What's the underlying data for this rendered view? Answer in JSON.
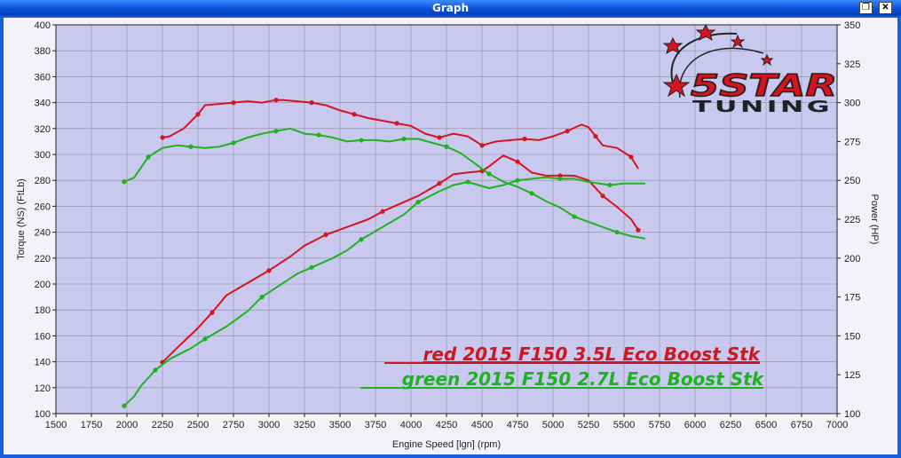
{
  "window": {
    "title": "Graph",
    "restore_icon": "restore-icon",
    "close_icon": "close-icon"
  },
  "logo": {
    "line1": "5STAR",
    "line2": "TUNING"
  },
  "colors": {
    "plot_bg": "#c9c9ef",
    "frame_bg": "#f3f3f7",
    "grid": "#8c8c9c",
    "red": "#d4141e",
    "green": "#1cb31c",
    "blue_chrome": "#1a5fe0"
  },
  "chart_data": {
    "type": "line",
    "xlabel": "Engine Speed [lgn] (rpm)",
    "ylabel": "Torque (NS) (FtLb)",
    "y2label": "Power (HP)",
    "xlim": [
      1500,
      7000
    ],
    "ylim": [
      100,
      400
    ],
    "y2lim": [
      100,
      350
    ],
    "xticks": [
      1500,
      1750,
      2000,
      2250,
      2500,
      2750,
      3000,
      3250,
      3500,
      3750,
      4000,
      4250,
      4500,
      4750,
      5000,
      5250,
      5500,
      5750,
      6000,
      6250,
      6500,
      6750,
      7000
    ],
    "yticks": [
      100,
      120,
      140,
      160,
      180,
      200,
      220,
      240,
      260,
      280,
      300,
      320,
      340,
      360,
      380,
      400
    ],
    "y2ticks": [
      100,
      125,
      150,
      175,
      200,
      225,
      250,
      275,
      300,
      325,
      350
    ],
    "grid": true,
    "annotations": [
      {
        "text": "red 2015 F150 3.5L Eco Boost Stk",
        "color": "#d4141e"
      },
      {
        "text": "green 2015 F150 2.7L Eco Boost Stk",
        "color": "#1cb31c"
      }
    ],
    "series": [
      {
        "color": "#d4141e",
        "axis": "left",
        "kind": "torque",
        "x": [
          2250,
          2300,
          2400,
          2500,
          2550,
          2650,
          2750,
          2850,
          2950,
          3050,
          3100,
          3200,
          3300,
          3400,
          3500,
          3600,
          3700,
          3800,
          3900,
          4000,
          4100,
          4200,
          4300,
          4400,
          4500,
          4600,
          4700,
          4800,
          4900,
          5000,
          5100,
          5200,
          5250,
          5300,
          5350,
          5450,
          5550,
          5600
        ],
        "y": [
          313,
          314,
          320,
          331,
          338,
          339,
          340,
          341,
          340,
          342,
          342,
          341,
          340,
          338,
          334,
          331,
          328,
          326,
          324,
          322,
          316,
          313,
          316,
          314,
          307,
          310,
          311,
          312,
          311,
          314,
          318,
          323,
          321,
          314,
          307,
          305,
          298,
          289
        ]
      },
      {
        "color": "#d4141e",
        "axis": "right",
        "kind": "power",
        "x": [
          2250,
          2350,
          2500,
          2600,
          2700,
          2850,
          3000,
          3150,
          3250,
          3400,
          3550,
          3700,
          3800,
          3900,
          4050,
          4200,
          4300,
          4400,
          4500,
          4550,
          4650,
          4750,
          4850,
          4950,
          5050,
          5150,
          5250,
          5350,
          5450,
          5550,
          5600
        ],
        "y": [
          133,
          142,
          155,
          165,
          176,
          184,
          192,
          201,
          208,
          215,
          220,
          225,
          230,
          234,
          240,
          248,
          254,
          255,
          256,
          259,
          266,
          262,
          255,
          253,
          253,
          253,
          250,
          240,
          233,
          225,
          218
        ]
      },
      {
        "color": "#1cb31c",
        "axis": "left",
        "kind": "torque",
        "x": [
          1980,
          2050,
          2100,
          2150,
          2250,
          2350,
          2450,
          2550,
          2650,
          2750,
          2850,
          2950,
          3050,
          3150,
          3250,
          3350,
          3450,
          3550,
          3650,
          3750,
          3850,
          3950,
          4050,
          4150,
          4250,
          4350,
          4450,
          4550,
          4650,
          4750,
          4850,
          4950,
          5050,
          5150,
          5250,
          5350,
          5450,
          5550,
          5650
        ],
        "y": [
          279,
          282,
          290,
          298,
          305,
          307,
          306,
          305,
          306,
          309,
          313,
          316,
          318,
          320,
          316,
          315,
          313,
          310,
          311,
          311,
          310,
          312,
          312,
          309,
          306,
          301,
          293,
          285,
          279,
          275,
          270,
          264,
          259,
          252,
          248,
          244,
          240,
          237,
          235
        ]
      },
      {
        "color": "#1cb31c",
        "axis": "right",
        "kind": "power",
        "x": [
          1980,
          2050,
          2100,
          2200,
          2300,
          2450,
          2550,
          2700,
          2850,
          2950,
          3100,
          3200,
          3300,
          3450,
          3550,
          3650,
          3800,
          3950,
          4050,
          4200,
          4300,
          4400,
          4550,
          4650,
          4750,
          4850,
          4950,
          5050,
          5150,
          5250,
          5400,
          5500,
          5650
        ],
        "y": [
          105,
          111,
          118,
          128,
          135,
          142,
          148,
          156,
          166,
          175,
          184,
          190,
          194,
          200,
          205,
          212,
          220,
          228,
          236,
          243,
          247,
          249,
          245,
          247,
          250,
          251,
          252,
          251,
          251,
          249,
          247,
          248,
          248
        ]
      }
    ]
  }
}
